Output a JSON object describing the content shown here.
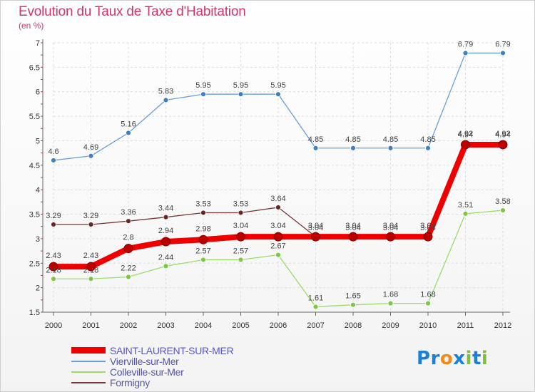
{
  "chart_data": {
    "type": "line",
    "title": "Evolution du Taux de Taxe d'Habitation",
    "subtitle": "(en %)",
    "xlabel": "",
    "ylabel": "",
    "x": [
      "2000",
      "2001",
      "2002",
      "2003",
      "2004",
      "2005",
      "2006",
      "2007",
      "2008",
      "2009",
      "2010",
      "2011",
      "2012"
    ],
    "ylim": [
      1.5,
      7
    ],
    "yticks": [
      "1.5",
      "2",
      "2.5",
      "3",
      "3.5",
      "4",
      "4.5",
      "5",
      "5.5",
      "6",
      "6.5",
      "7"
    ],
    "grid": true,
    "legend_position": "bottom-left",
    "series": [
      {
        "name": "SAINT-LAURENT-SUR-MER",
        "color": "#ee0000",
        "marker": "#bb0000",
        "values": [
          2.43,
          2.43,
          2.8,
          2.94,
          2.98,
          3.04,
          3.04,
          3.04,
          3.04,
          3.04,
          3.04,
          4.92,
          4.92
        ],
        "labels": [
          "2.43",
          "2.43",
          "2.8",
          "2.94",
          "2.98",
          "3.04",
          "3.04",
          "3.04",
          "3.04",
          "3.04",
          "3.04",
          "4.92",
          "4.92"
        ]
      },
      {
        "name": "Vierville-sur-Mer",
        "color": "#6a9fd6",
        "marker": "#3f7fc4",
        "values": [
          4.6,
          4.69,
          5.16,
          5.83,
          5.95,
          5.95,
          5.95,
          4.85,
          4.85,
          4.85,
          4.85,
          6.79,
          6.79
        ],
        "labels": [
          "4.6",
          "4.69",
          "5.16",
          "5.83",
          "5.95",
          "5.95",
          "5.95",
          "4.85",
          "4.85",
          "4.85",
          "4.85",
          "6.79",
          "6.79"
        ]
      },
      {
        "name": "Colleville-sur-Mer",
        "color": "#99dd66",
        "marker": "#7cc744",
        "values": [
          2.18,
          2.18,
          2.22,
          2.44,
          2.57,
          2.57,
          2.67,
          1.61,
          1.65,
          1.68,
          1.68,
          3.51,
          3.58
        ],
        "labels": [
          "2.18",
          "2.18",
          "2.22",
          "2.44",
          "2.57",
          "2.57",
          "2.67",
          "1.61",
          "1.65",
          "1.68",
          "1.68",
          "3.51",
          "3.58"
        ]
      },
      {
        "name": "Formigny",
        "color": "#7a3535",
        "marker": "#6a2525",
        "values": [
          3.29,
          3.29,
          3.36,
          3.44,
          3.53,
          3.53,
          3.64,
          3.04,
          3.04,
          3.04,
          3.04,
          4.94,
          4.94
        ],
        "labels": [
          "3.29",
          "3.29",
          "3.36",
          "3.44",
          "3.53",
          "3.53",
          "3.64",
          "3.04",
          "3.04",
          "3.04",
          "3.04",
          "4.94",
          "4.94"
        ]
      }
    ]
  },
  "logo": {
    "letters": [
      "P",
      "r",
      "o",
      "x",
      "i",
      "t",
      "i"
    ],
    "colors": [
      "#1e7fd6",
      "#1e7fd6",
      "#f08a1c",
      "#1e7fd6",
      "#7fbf3f",
      "#1e7fd6",
      "#7fbf3f"
    ]
  }
}
